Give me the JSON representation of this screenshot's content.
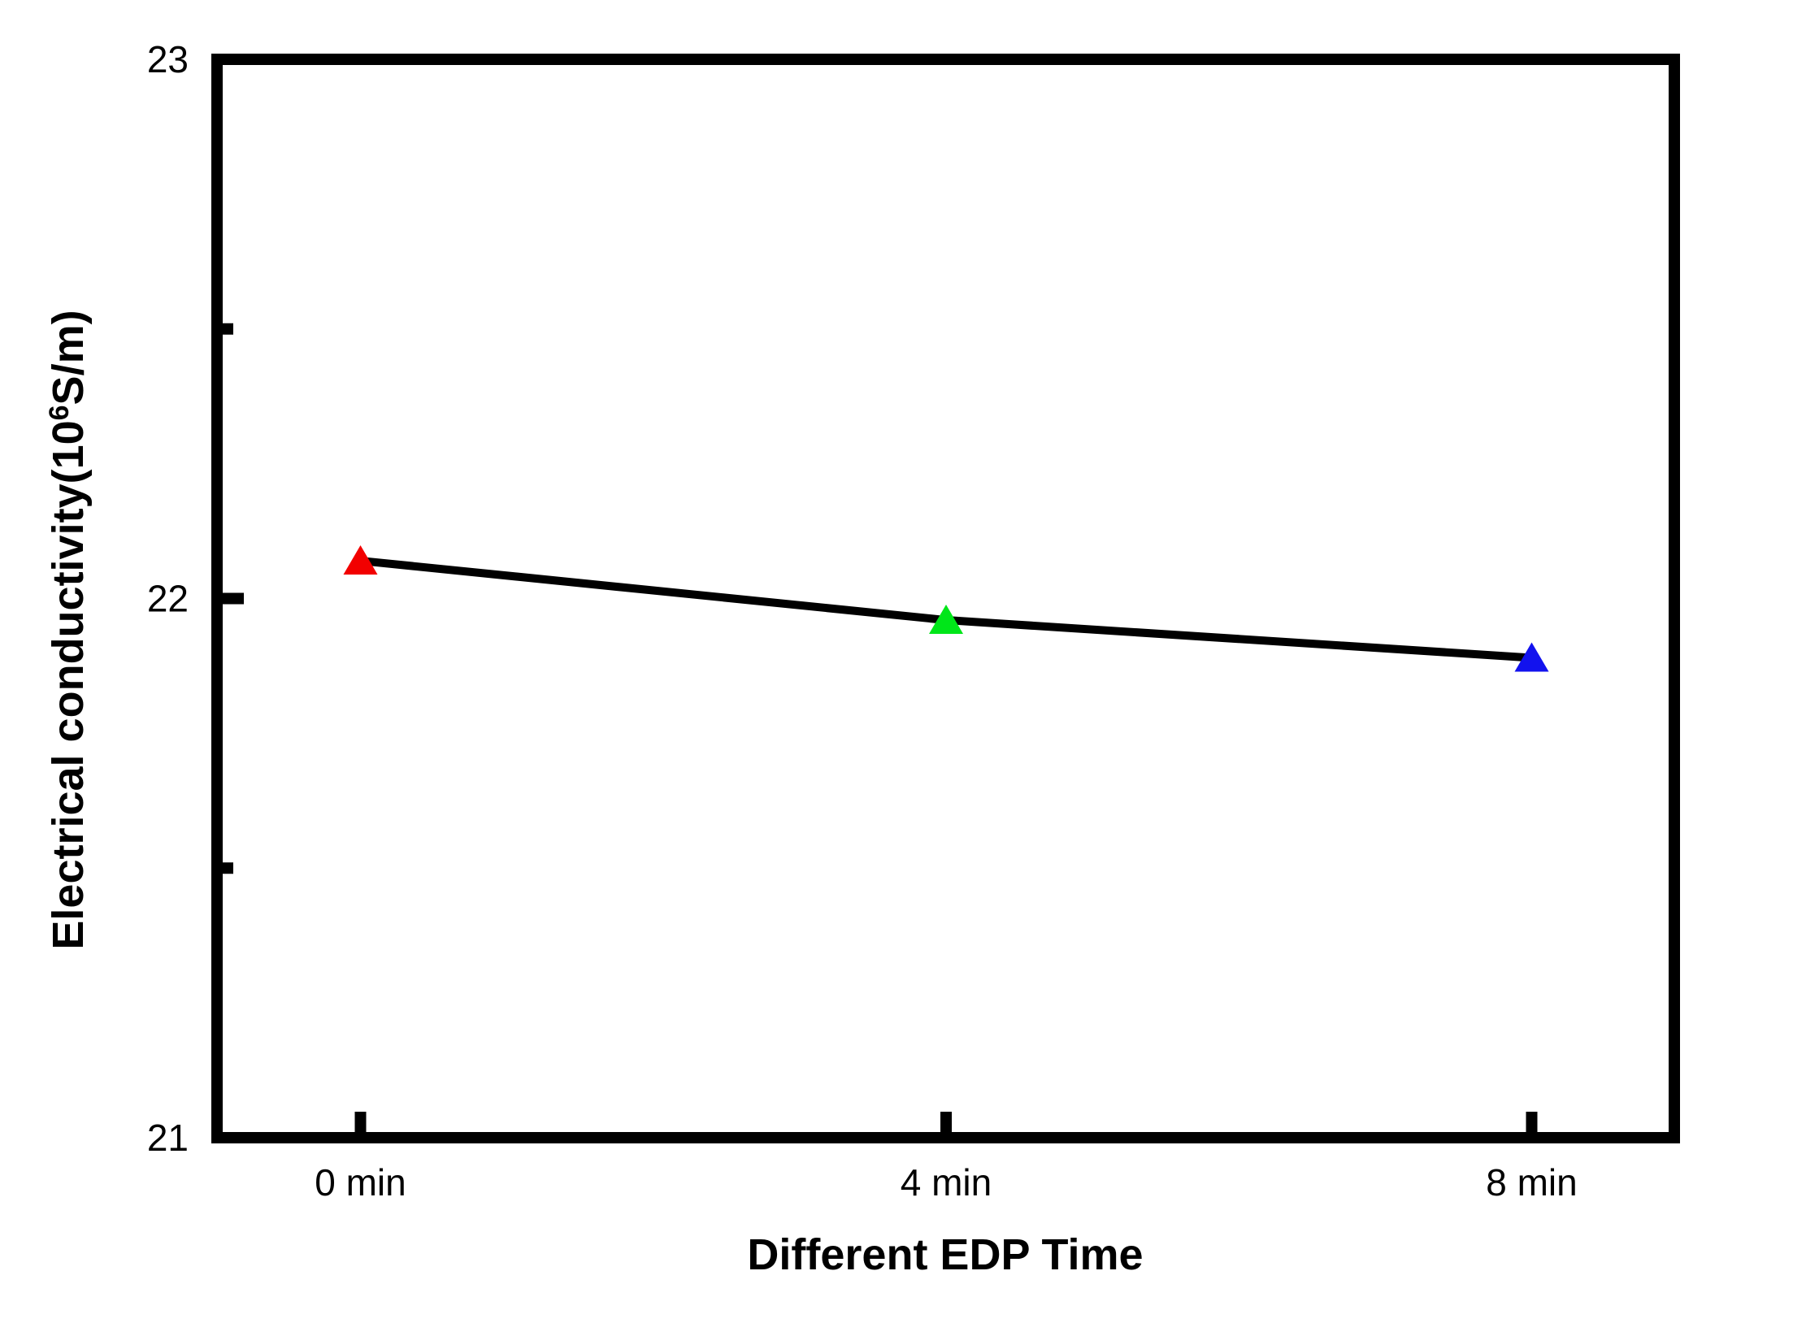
{
  "chart_data": {
    "type": "line",
    "title": "",
    "xlabel": "Different EDP Time",
    "ylabel": "Electrical conductivity(10⁶S/m)",
    "ylabel_parts": {
      "pre": "Electrical conductivity(10",
      "sup": "6",
      "post": "S/m)"
    },
    "categories": [
      "0 min",
      "4 min",
      "8 min"
    ],
    "x": [
      0,
      4,
      8
    ],
    "values": [
      22.07,
      21.96,
      21.89
    ],
    "series": [
      {
        "name": "Electrical conductivity",
        "values": [
          22.07,
          21.96,
          21.89
        ],
        "marker": "triangle-up",
        "marker_colors": [
          "#f20000",
          "#00e619",
          "#1212ee"
        ],
        "line_color": "#000000"
      }
    ],
    "ylim": [
      21,
      23
    ],
    "yticks": [
      21,
      22,
      23
    ],
    "ytick_labels": [
      "21",
      "22",
      "23"
    ],
    "yticks_minor": [
      21.5,
      22.5
    ],
    "grid": false,
    "legend": null,
    "frame_color": "#000000",
    "background_color": "#ffffff"
  }
}
